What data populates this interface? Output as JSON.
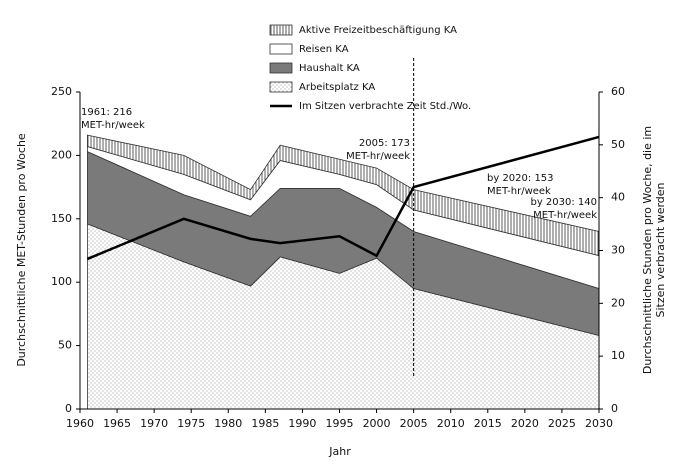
{
  "chart_data": {
    "type": "stacked-area",
    "x_label": "Jahr",
    "y_label": "Durchschnittliche MET-Stunden pro Woche",
    "y2_label": [
      "Durchschnittliche Stunden pro Woche, die im",
      "Sitzen verbracht werden"
    ],
    "x": [
      1961,
      1974,
      1983,
      1987,
      1995,
      2000,
      2005,
      2030
    ],
    "series": [
      {
        "name": "Aktive Freizeitbeschäftigung KA",
        "type": "area",
        "color": "#ffffff",
        "pattern": "vertical-lines",
        "values": [
          9,
          15,
          8,
          12,
          12,
          13,
          16,
          19
        ]
      },
      {
        "name": "Reisen KA",
        "type": "area",
        "color": "#ffffff",
        "pattern": "none",
        "values": [
          4,
          16,
          13,
          22,
          11,
          18,
          17,
          26
        ]
      },
      {
        "name": "Haushalt KA",
        "type": "area",
        "color": "#7a7a7a",
        "pattern": "none",
        "values": [
          57,
          53,
          55,
          54,
          67,
          40,
          45,
          37
        ]
      },
      {
        "name": "Arbeitsplatz KA",
        "type": "area",
        "color": "#ffffff",
        "pattern": "dots",
        "values": [
          146,
          116,
          97,
          120,
          107,
          119,
          95,
          58
        ]
      },
      {
        "name": "Im Sitzen verbrachte Zeit Std./Wo.",
        "type": "line",
        "axis": "y2",
        "color": "#000000",
        "values": [
          28.4,
          36,
          32.2,
          31.4,
          32.7,
          29,
          42,
          51.5
        ]
      }
    ],
    "reference_line_x": 2005,
    "annotations": [
      [
        "1961: 216",
        "MET-hr/week"
      ],
      [
        "2005: 173",
        "MET-hr/week"
      ],
      [
        "by 2020: 153",
        "MET-hr/week"
      ],
      [
        "by 2030: 140",
        "MET-hr/week"
      ]
    ],
    "xlim": [
      1960,
      2030
    ],
    "xticks": [
      1960,
      1965,
      1970,
      1975,
      1980,
      1985,
      1990,
      1995,
      2000,
      2005,
      2010,
      2015,
      2020,
      2025,
      2030
    ],
    "ylim": [
      0,
      250
    ],
    "yticks": [
      0,
      50,
      100,
      150,
      200,
      250
    ],
    "y2lim": [
      0,
      60
    ],
    "y2ticks": [
      0,
      10,
      20,
      30,
      40,
      50,
      60
    ],
    "legend": "top"
  }
}
